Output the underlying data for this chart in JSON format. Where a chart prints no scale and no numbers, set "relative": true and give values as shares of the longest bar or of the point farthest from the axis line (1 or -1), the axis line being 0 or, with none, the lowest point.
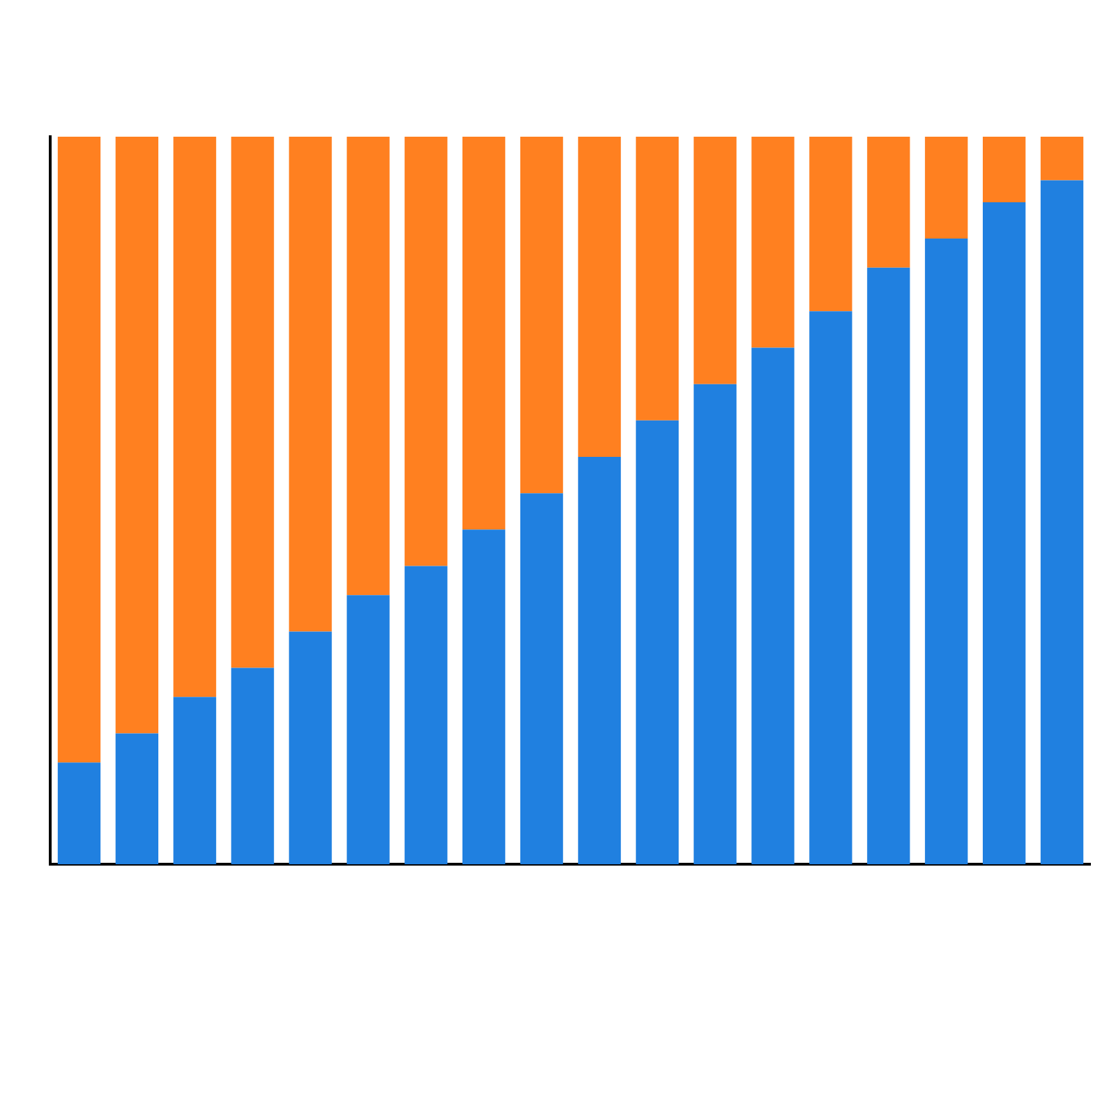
{
  "chart_data": {
    "type": "bar",
    "stacked": true,
    "relative": true,
    "legend": false,
    "grid": false,
    "categories": [
      null,
      null,
      null,
      null,
      null,
      null,
      null,
      null,
      null,
      null,
      null,
      null,
      null,
      null,
      null,
      null,
      null,
      null
    ],
    "series": [
      {
        "color": "#2080e0",
        "values": [
          0.14,
          0.18,
          0.23,
          0.27,
          0.32,
          0.37,
          0.41,
          0.46,
          0.51,
          0.56,
          0.61,
          0.66,
          0.71,
          0.76,
          0.82,
          0.86,
          0.91,
          0.94
        ]
      },
      {
        "color": "#ff8020",
        "values": [
          0.86,
          0.82,
          0.77,
          0.73,
          0.68,
          0.63,
          0.59,
          0.54,
          0.49,
          0.44,
          0.39,
          0.34,
          0.29,
          0.24,
          0.18,
          0.14,
          0.09,
          0.06
        ]
      }
    ]
  }
}
